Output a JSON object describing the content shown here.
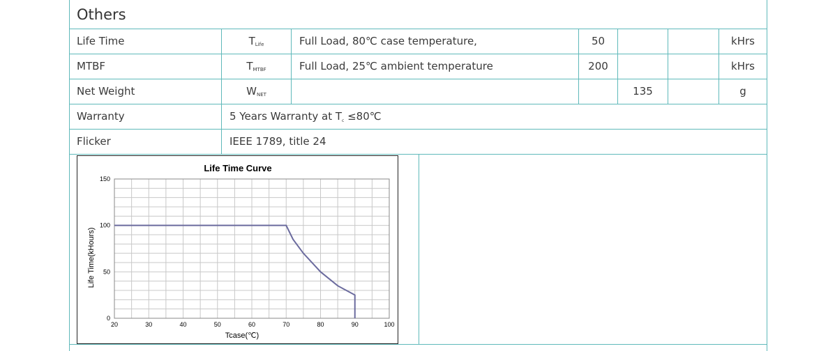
{
  "section": {
    "title": "Others"
  },
  "rows": [
    {
      "param": "Life Time",
      "symbol": "T",
      "symbol_sub": "Life",
      "condition": "Full Load, 80℃  case temperature,",
      "min": "50",
      "typ": "",
      "max": "",
      "unit": "kHrs"
    },
    {
      "param": "MTBF",
      "symbol": "T",
      "symbol_sub": "MTBF",
      "condition": "Full Load, 25℃  ambient temperature",
      "min": "200",
      "typ": "",
      "max": "",
      "unit": "kHrs"
    },
    {
      "param": "Net Weight",
      "symbol": "W",
      "symbol_sub": "NET",
      "condition": "",
      "min": "",
      "typ": "135",
      "max": "",
      "unit": "g"
    }
  ],
  "warranty": {
    "label": "Warranty",
    "text_pre": "5 Years Warranty at T",
    "text_sub": "c",
    "text_post": " ≤80℃"
  },
  "flicker": {
    "label": "Flicker",
    "text": "IEEE 1789, title 24"
  },
  "chart_data": {
    "type": "line",
    "title": "Life Time Curve",
    "xlabel": "Tcase(℃)",
    "ylabel": "Life Time(kHours)",
    "xlim": [
      20,
      100
    ],
    "ylim": [
      0,
      150
    ],
    "xticks": [
      20,
      30,
      40,
      50,
      60,
      70,
      80,
      90,
      100
    ],
    "yticks": [
      0,
      50,
      100,
      150
    ],
    "grid": true,
    "series": [
      {
        "x": [
          20,
          70,
          72,
          75,
          80,
          85,
          90,
          90
        ],
        "y": [
          100,
          100,
          85,
          70,
          50,
          35,
          25,
          0
        ]
      }
    ],
    "line_color": "#6b6b9e"
  }
}
